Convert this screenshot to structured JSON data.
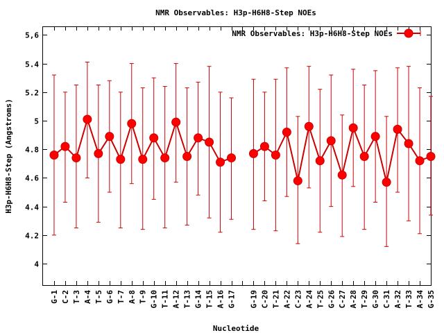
{
  "chart_data": {
    "type": "line",
    "title": "NMR Observables: H3p-H6H8-Step NOEs",
    "xlabel": "Nucleotide",
    "ylabel": "H3p-H6H8-Step (Angstroms)",
    "ylim": [
      3.85,
      5.66
    ],
    "yticks": [
      "4",
      "4.2",
      "4.4",
      "4.6",
      "4.8",
      "5",
      "5.2",
      "5.4",
      "5,6"
    ],
    "ytick_values": [
      4.0,
      4.2,
      4.4,
      4.6,
      4.8,
      5.0,
      5.2,
      5.4,
      5.6
    ],
    "grid": false,
    "legend_position": "top-right",
    "x_index_range": [
      0,
      35
    ],
    "categories": [
      "G-1",
      "C-2",
      "T-3",
      "A-4",
      "T-5",
      "G-6",
      "T-7",
      "A-8",
      "T-9",
      "G-10",
      "T-11",
      "A-12",
      "T-13",
      "G-14",
      "T-15",
      "A-16",
      "G-17",
      "G-19",
      "C-20",
      "T-21",
      "A-22",
      "C-23",
      "A-24",
      "T-25",
      "G-26",
      "C-27",
      "A-28",
      "T-29",
      "G-30",
      "C-31",
      "A-32",
      "T-33",
      "A-34",
      "G-35"
    ],
    "x_index": [
      1,
      2,
      3,
      4,
      5,
      6,
      7,
      8,
      9,
      10,
      11,
      12,
      13,
      14,
      15,
      16,
      17,
      19,
      20,
      21,
      22,
      23,
      24,
      25,
      26,
      27,
      28,
      29,
      30,
      31,
      32,
      33,
      34,
      35
    ],
    "series": [
      {
        "name": "NMR Observables: H3p-H6H8-Step NOEs",
        "color": "#ff0000",
        "line_color": "#cc0000",
        "segments": [
          [
            0,
            16
          ],
          [
            17,
            33
          ]
        ],
        "values": [
          4.76,
          4.82,
          4.74,
          5.01,
          4.77,
          4.89,
          4.73,
          4.98,
          4.73,
          4.88,
          4.74,
          4.99,
          4.75,
          4.88,
          4.85,
          4.71,
          4.74,
          4.77,
          4.82,
          4.76,
          4.92,
          4.58,
          4.96,
          4.72,
          4.86,
          4.62,
          4.95,
          4.75,
          4.89,
          4.57,
          4.94,
          4.84,
          4.72,
          4.75
        ],
        "err_low": [
          4.2,
          4.43,
          4.25,
          4.6,
          4.29,
          4.5,
          4.25,
          4.56,
          4.24,
          4.45,
          4.25,
          4.57,
          4.27,
          4.48,
          4.32,
          4.22,
          4.31,
          4.24,
          4.44,
          4.23,
          4.47,
          4.14,
          4.53,
          4.22,
          4.4,
          4.19,
          4.54,
          4.24,
          4.43,
          4.12,
          4.5,
          4.3,
          4.21,
          4.34
        ],
        "err_high": [
          5.32,
          5.2,
          5.25,
          5.41,
          5.25,
          5.28,
          5.2,
          5.4,
          5.23,
          5.3,
          5.24,
          5.4,
          5.23,
          5.27,
          5.38,
          5.2,
          5.16,
          5.29,
          5.2,
          5.29,
          5.37,
          5.03,
          5.38,
          5.22,
          5.32,
          5.04,
          5.36,
          5.25,
          5.35,
          5.03,
          5.37,
          5.38,
          5.23,
          5.17
        ]
      }
    ]
  }
}
